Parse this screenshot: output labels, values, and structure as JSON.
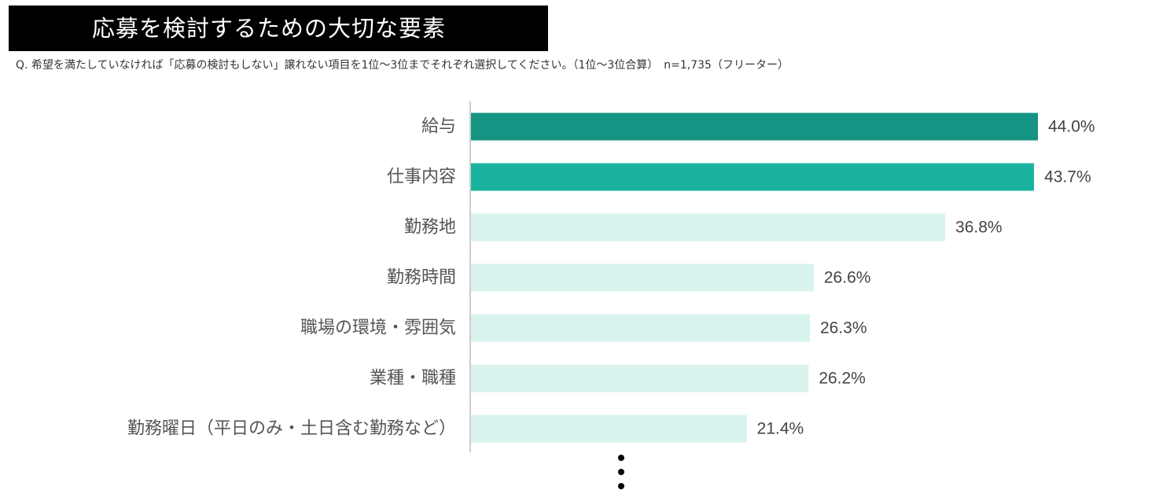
{
  "title": "応募を検討するための大切な要素",
  "question": "Q. 希望を満たしていなければ「応募の検討もしない」譲れない項目を1位～3位までそれぞれ選択してください。（1位～3位合算）　n=1,735（フリーター）",
  "colors": {
    "title_bg": "#000000",
    "title_text": "#ffffff",
    "rank1": "#159484",
    "rank2": "#1bb39f",
    "others": "#d8f3ee",
    "axis": "#cccccc",
    "label_text": "#555555",
    "value_text": "#444444"
  },
  "chart_data": {
    "type": "bar",
    "orientation": "horizontal",
    "categories": [
      "給与",
      "仕事内容",
      "勤務地",
      "勤務時間",
      "職場の環境・雰囲気",
      "業種・職種",
      "勤務曜日（平日のみ・土日含む勤務など）"
    ],
    "values": [
      44.0,
      43.7,
      36.8,
      26.6,
      26.3,
      26.2,
      21.4
    ],
    "value_labels": [
      "44.0%",
      "43.7%",
      "36.8%",
      "26.6%",
      "26.3%",
      "26.2%",
      "21.4%"
    ],
    "unit": "%",
    "xlim": [
      0,
      44
    ],
    "grid": false,
    "legend": "none",
    "continuation_marker": "⋮"
  }
}
